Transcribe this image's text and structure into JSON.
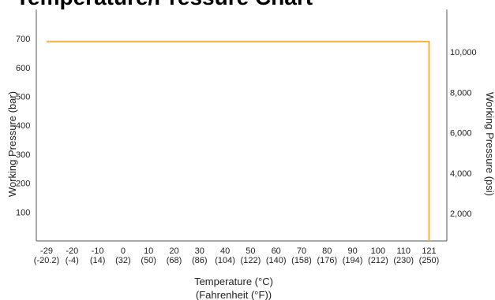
{
  "chart_data": {
    "type": "line",
    "title": "Temperature/Pressure Chart",
    "xlabel": "Temperature (°C)",
    "xlabel2": "(Fahrenheit (°F))",
    "ylabel": "Working Pressure (bar)",
    "y2label": "Working Pressure (psi)",
    "x_ticks": [
      {
        "c": "-29",
        "f": "(-20.2)"
      },
      {
        "c": "-20",
        "f": "(-4)"
      },
      {
        "c": "-10",
        "f": "(14)"
      },
      {
        "c": "0",
        "f": "(32)"
      },
      {
        "c": "10",
        "f": "(50)"
      },
      {
        "c": "20",
        "f": "(68)"
      },
      {
        "c": "30",
        "f": "(86)"
      },
      {
        "c": "40",
        "f": "(104)"
      },
      {
        "c": "50",
        "f": "(122)"
      },
      {
        "c": "60",
        "f": "(140)"
      },
      {
        "c": "70",
        "f": "(158)"
      },
      {
        "c": "80",
        "f": "(176)"
      },
      {
        "c": "90",
        "f": "(194)"
      },
      {
        "c": "100",
        "f": "(212)"
      },
      {
        "c": "110",
        "f": "(230)"
      },
      {
        "c": "121",
        "f": "(250)"
      }
    ],
    "y_ticks_bar": [
      100,
      200,
      300,
      400,
      500,
      600,
      700
    ],
    "y_ticks_psi": [
      "2,000",
      "4,000",
      "6,000",
      "8,000",
      "10,000"
    ],
    "ylim_bar": [
      0,
      730
    ],
    "series": [
      {
        "x": [
          -29,
          121,
          121
        ],
        "y": [
          690,
          690,
          0
        ],
        "color": "#f5b335"
      }
    ]
  }
}
